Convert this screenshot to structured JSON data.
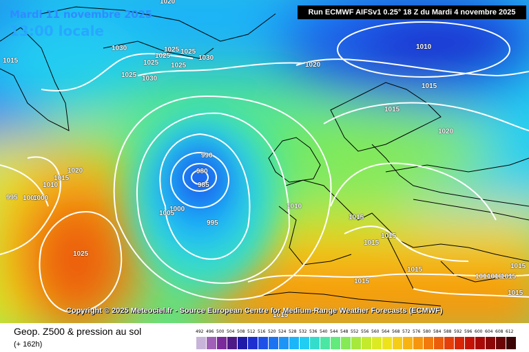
{
  "header": {
    "date": "Mardi 11 novembre 2025",
    "local_time": "13:00 locale",
    "run": "Run ECMWF AIFSv1 0.25° 18 Z du Mardi 4 novembre 2025"
  },
  "copyright": "Copyright © 2025 Meteociel.fr - Source European Centre for Medium-Range Weather Forecasts (ECMWF)",
  "footer": {
    "parameter": "Geop. Z500 & pression au sol",
    "step": "(+ 162h)"
  },
  "isobar_labels": [
    {
      "text": "1020"
    },
    {
      "text": "1015"
    },
    {
      "text": "1030"
    },
    {
      "text": "1025"
    },
    {
      "text": "1025"
    },
    {
      "text": "1025"
    },
    {
      "text": "1025"
    },
    {
      "text": "1025"
    },
    {
      "text": "1030"
    },
    {
      "text": "1025"
    },
    {
      "text": "1030"
    },
    {
      "text": "1020"
    },
    {
      "text": "1010"
    },
    {
      "text": "1015"
    },
    {
      "text": "1015"
    },
    {
      "text": "1020"
    },
    {
      "text": "990"
    },
    {
      "text": "980"
    },
    {
      "text": "985"
    },
    {
      "text": "1020"
    },
    {
      "text": "1015"
    },
    {
      "text": "1010"
    },
    {
      "text": "995"
    },
    {
      "text": "1000"
    },
    {
      "text": "1000"
    },
    {
      "text": "1010"
    },
    {
      "text": "1000"
    },
    {
      "text": "1005"
    },
    {
      "text": "995"
    },
    {
      "text": "1015"
    },
    {
      "text": "1015"
    },
    {
      "text": "1015"
    },
    {
      "text": "1025"
    },
    {
      "text": "1015"
    },
    {
      "text": "1015"
    },
    {
      "text": "1010"
    },
    {
      "text": "1010"
    },
    {
      "text": "1015"
    },
    {
      "text": "1015"
    },
    {
      "text": "1015"
    },
    {
      "text": "1015"
    }
  ],
  "legend": {
    "values": [
      "492",
      "496",
      "500",
      "504",
      "508",
      "512",
      "516",
      "520",
      "524",
      "528",
      "532",
      "536",
      "540",
      "544",
      "548",
      "552",
      "556",
      "560",
      "564",
      "568",
      "572",
      "576",
      "580",
      "584",
      "588",
      "592",
      "596",
      "600",
      "604",
      "608",
      "612"
    ],
    "colors": [
      "#c8b4d8",
      "#a060b8",
      "#7a2a9a",
      "#4e1a86",
      "#1f1aa8",
      "#1e2fd0",
      "#1e50e8",
      "#1b73f2",
      "#1c95f6",
      "#1bb6f8",
      "#22cdf2",
      "#34dccc",
      "#49e6a4",
      "#62ea7d",
      "#85ea55",
      "#a6e83c",
      "#c4ea2e",
      "#dcea24",
      "#eee31b",
      "#f6cd16",
      "#f8b312",
      "#f6960f",
      "#f27a0d",
      "#ec5d0b",
      "#e43f09",
      "#d72506",
      "#c41306",
      "#aa0a06",
      "#8c0806",
      "#6a0606",
      "#3c0404"
    ]
  },
  "colors": {
    "background_low": "#1e50e8",
    "land_outline": "#000000",
    "isobar": "#ffffff"
  }
}
